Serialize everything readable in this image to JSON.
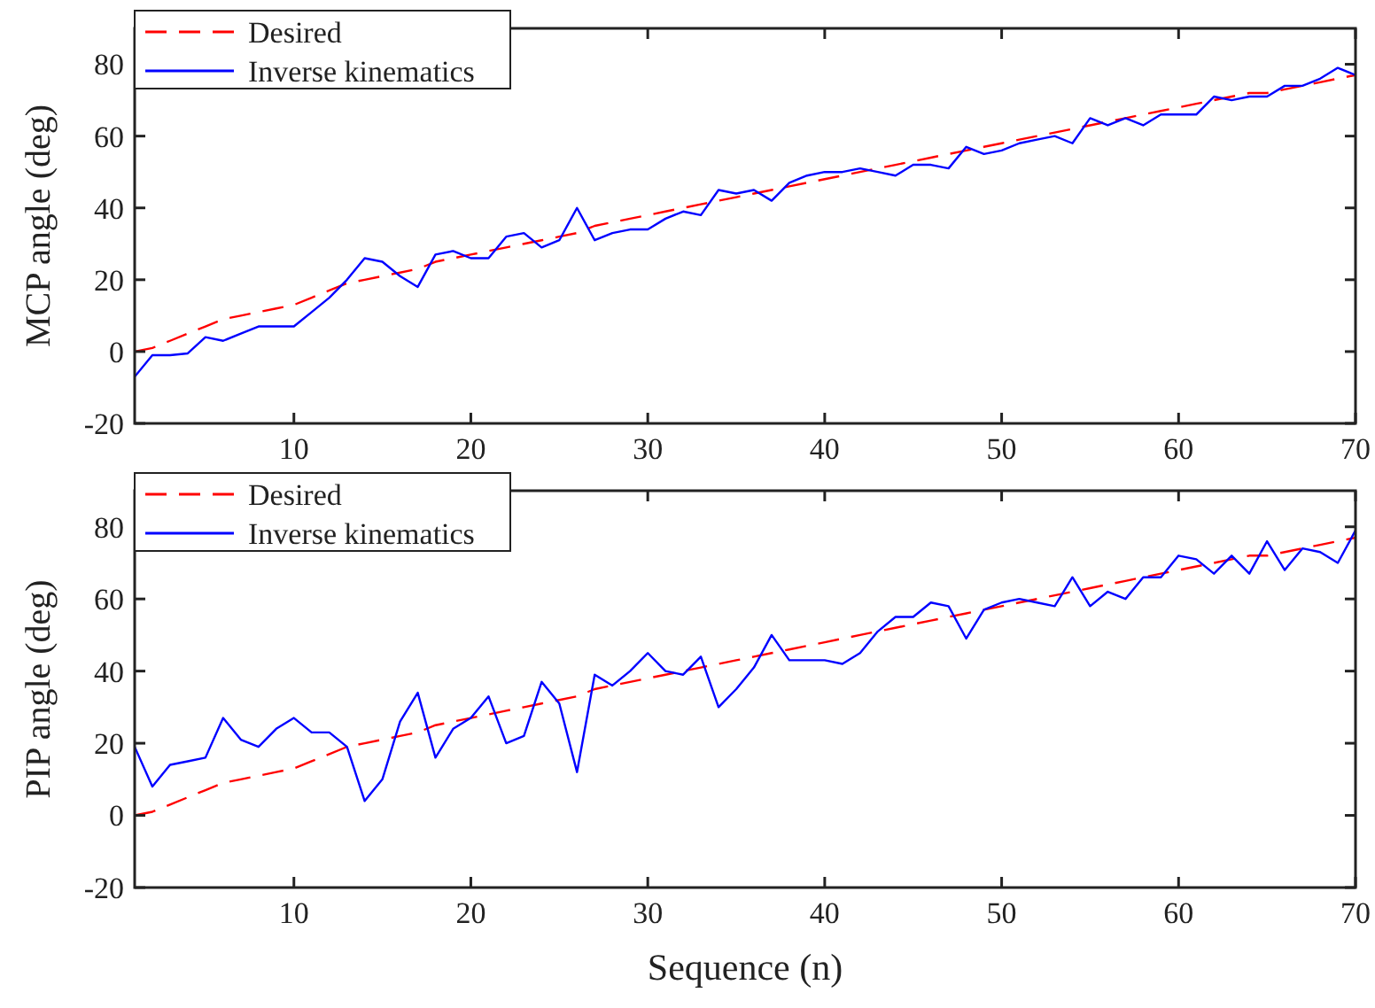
{
  "chart_data": [
    {
      "type": "line",
      "ylabel": "MCP angle (deg)",
      "x": [
        1,
        2,
        3,
        4,
        5,
        6,
        7,
        8,
        9,
        10,
        11,
        12,
        13,
        14,
        15,
        16,
        17,
        18,
        19,
        20,
        21,
        22,
        23,
        24,
        25,
        26,
        27,
        28,
        29,
        30,
        31,
        32,
        33,
        34,
        35,
        36,
        37,
        38,
        39,
        40,
        41,
        42,
        43,
        44,
        45,
        46,
        47,
        48,
        49,
        50,
        51,
        52,
        53,
        54,
        55,
        56,
        57,
        58,
        59,
        60,
        61,
        62,
        63,
        64,
        65,
        66,
        67,
        68,
        69,
        70
      ],
      "xlim": [
        1,
        70
      ],
      "xticks": [
        10,
        20,
        30,
        40,
        50,
        60,
        70
      ],
      "ylim": [
        -20,
        90
      ],
      "yticks": [
        -20,
        0,
        20,
        40,
        60,
        80
      ],
      "legend": "top left",
      "grid": false,
      "series": [
        {
          "name": "Desired",
          "color": "#ff0000",
          "line_style": "dashed",
          "values": [
            0,
            1,
            3,
            5,
            7,
            9,
            10,
            11,
            12,
            13,
            15,
            17,
            19,
            20,
            21,
            22,
            23,
            25,
            26,
            27,
            28,
            29,
            30,
            31,
            32,
            33,
            35,
            36,
            37,
            38,
            39,
            40,
            41,
            42,
            43,
            44,
            45,
            46,
            47,
            48,
            49,
            50,
            51,
            52,
            53,
            54,
            55,
            56,
            57,
            58,
            59,
            60,
            61,
            62,
            63,
            64,
            65,
            66,
            67,
            68,
            69,
            70,
            71,
            72,
            72,
            73,
            74,
            75,
            76,
            77
          ]
        },
        {
          "name": "Inverse kinematics",
          "color": "#0000ff",
          "line_style": "solid",
          "values": [
            -7,
            -1,
            -1,
            -0.5,
            4,
            3,
            5,
            7,
            7,
            7,
            11,
            15,
            20,
            26,
            25,
            21,
            18,
            27,
            28,
            26,
            26,
            32,
            33,
            29,
            31,
            40,
            31,
            33,
            34,
            34,
            37,
            39,
            38,
            45,
            44,
            45,
            42,
            47,
            49,
            50,
            50,
            51,
            50,
            49,
            52,
            52,
            51,
            57,
            55,
            56,
            58,
            59,
            60,
            58,
            65,
            63,
            65,
            63,
            66,
            66,
            66,
            71,
            70,
            71,
            71,
            74,
            74,
            76,
            79,
            77
          ]
        }
      ]
    },
    {
      "type": "line",
      "ylabel": "PIP angle (deg)",
      "xlabel": "Sequence (n)",
      "x": [
        1,
        2,
        3,
        4,
        5,
        6,
        7,
        8,
        9,
        10,
        11,
        12,
        13,
        14,
        15,
        16,
        17,
        18,
        19,
        20,
        21,
        22,
        23,
        24,
        25,
        26,
        27,
        28,
        29,
        30,
        31,
        32,
        33,
        34,
        35,
        36,
        37,
        38,
        39,
        40,
        41,
        42,
        43,
        44,
        45,
        46,
        47,
        48,
        49,
        50,
        51,
        52,
        53,
        54,
        55,
        56,
        57,
        58,
        59,
        60,
        61,
        62,
        63,
        64,
        65,
        66,
        67,
        68,
        69,
        70
      ],
      "xlim": [
        1,
        70
      ],
      "xticks": [
        10,
        20,
        30,
        40,
        50,
        60,
        70
      ],
      "ylim": [
        -20,
        90
      ],
      "yticks": [
        -20,
        0,
        20,
        40,
        60,
        80
      ],
      "legend": "top left",
      "grid": false,
      "series": [
        {
          "name": "Desired",
          "color": "#ff0000",
          "line_style": "dashed",
          "values": [
            0,
            1,
            3,
            5,
            7,
            9,
            10,
            11,
            12,
            13,
            15,
            17,
            19,
            20,
            21,
            22,
            23,
            25,
            26,
            27,
            28,
            29,
            30,
            31,
            32,
            33,
            35,
            36,
            37,
            38,
            39,
            40,
            41,
            42,
            43,
            44,
            45,
            46,
            47,
            48,
            49,
            50,
            51,
            52,
            53,
            54,
            55,
            56,
            57,
            58,
            59,
            60,
            61,
            62,
            63,
            64,
            65,
            66,
            67,
            68,
            69,
            70,
            71,
            72,
            72,
            73,
            74,
            75,
            76,
            77
          ]
        },
        {
          "name": "Inverse kinematics",
          "color": "#0000ff",
          "line_style": "solid",
          "values": [
            19,
            8,
            14,
            15,
            16,
            27,
            21,
            19,
            24,
            27,
            23,
            23,
            19,
            4,
            10,
            26,
            34,
            16,
            24,
            27,
            33,
            20,
            22,
            37,
            31,
            12,
            39,
            36,
            40,
            45,
            40,
            39,
            44,
            30,
            35,
            41,
            50,
            43,
            43,
            43,
            42,
            45,
            51,
            55,
            55,
            59,
            58,
            49,
            57,
            59,
            60,
            59,
            58,
            66,
            58,
            62,
            60,
            66,
            66,
            72,
            71,
            67,
            72,
            67,
            76,
            68,
            74,
            73,
            70,
            79
          ]
        }
      ]
    }
  ]
}
